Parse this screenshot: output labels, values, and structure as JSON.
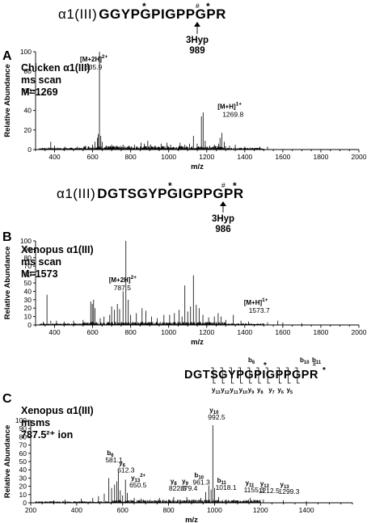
{
  "header_a": {
    "prefix": "α1(III)",
    "sequence": "GGYPGPIGPPGPR",
    "star": "*",
    "hash": "#",
    "hyp_label": "3Hyp",
    "hyp_value": "989"
  },
  "header_b": {
    "prefix": "α1(III)",
    "sequence": "DGTSGYPGIGPPGPR",
    "star": "*",
    "hash": "#",
    "hyp_label": "3Hyp",
    "hyp_value": "986"
  },
  "header_c": {
    "sequence": "DGTSGYPGPIGPPGPR",
    "star": "*",
    "hash": "#",
    "b_ions": [
      "b",
      "b",
      "b"
    ],
    "b_subs": [
      "6",
      "10",
      "11"
    ],
    "y_ions": [
      "y",
      "y",
      "y",
      "y",
      "y",
      "y",
      "y",
      "y",
      "y"
    ],
    "y_subs": [
      "13",
      "12",
      "11",
      "10",
      "9",
      "8",
      "7",
      "6",
      "5"
    ]
  },
  "chart_data": [
    {
      "type": "line",
      "panel": "A",
      "title_lines": [
        "Chicken α1(III)",
        "ms scan",
        "M=1269"
      ],
      "xlabel": "m/z",
      "ylabel": "Relative Abundance",
      "xlim": [
        300,
        2000
      ],
      "ylim": [
        0,
        100
      ],
      "xticks": [
        400,
        600,
        800,
        1000,
        1200,
        1400,
        1600,
        1800,
        2000
      ],
      "yticks": [
        0,
        20,
        40,
        60,
        80,
        100
      ],
      "peaks": [
        [
          380,
          8
        ],
        [
          400,
          4
        ],
        [
          455,
          3
        ],
        [
          520,
          3
        ],
        [
          560,
          4
        ],
        [
          600,
          5
        ],
        [
          612,
          8
        ],
        [
          625,
          12
        ],
        [
          630,
          16
        ],
        [
          635.9,
          100
        ],
        [
          643,
          14
        ],
        [
          650,
          8
        ],
        [
          672,
          4
        ],
        [
          700,
          5
        ],
        [
          728,
          4
        ],
        [
          760,
          5
        ],
        [
          790,
          4
        ],
        [
          820,
          5
        ],
        [
          855,
          7
        ],
        [
          872,
          6
        ],
        [
          890,
          9
        ],
        [
          905,
          5
        ],
        [
          930,
          4
        ],
        [
          960,
          6
        ],
        [
          990,
          7
        ],
        [
          1010,
          5
        ],
        [
          1060,
          7
        ],
        [
          1085,
          5
        ],
        [
          1110,
          6
        ],
        [
          1130,
          14
        ],
        [
          1150,
          6
        ],
        [
          1172,
          34
        ],
        [
          1181,
          38
        ],
        [
          1192,
          9
        ],
        [
          1215,
          4
        ],
        [
          1240,
          5
        ],
        [
          1262,
          6
        ],
        [
          1269.8,
          12
        ],
        [
          1280,
          17
        ],
        [
          1292,
          8
        ],
        [
          1320,
          4
        ],
        [
          1350,
          5
        ],
        [
          1400,
          3
        ],
        [
          1480,
          3
        ],
        [
          1520,
          3
        ]
      ],
      "annotations": [
        {
          "label": "[M+2H]",
          "charge": "2+",
          "value": "635.9"
        },
        {
          "label": "[M+H]",
          "charge": "1+",
          "value": "1269.8"
        }
      ]
    },
    {
      "type": "line",
      "panel": "B",
      "title_lines": [
        "Xenopus α1(III)",
        "ms scan",
        "M=1573"
      ],
      "xlabel": "m/z",
      "ylabel": "Relative Abundance",
      "xlim": [
        300,
        2000
      ],
      "ylim": [
        0,
        100
      ],
      "xticks": [
        400,
        600,
        800,
        1000,
        1200,
        1400,
        1600,
        1800,
        2000
      ],
      "yticks": [
        0,
        10,
        20,
        30,
        40,
        50,
        60,
        70,
        80,
        90,
        100
      ],
      "peaks": [
        [
          340,
          4
        ],
        [
          360,
          36
        ],
        [
          380,
          5
        ],
        [
          410,
          5
        ],
        [
          450,
          4
        ],
        [
          500,
          5
        ],
        [
          550,
          6
        ],
        [
          590,
          28
        ],
        [
          598,
          25
        ],
        [
          605,
          30
        ],
        [
          612,
          20
        ],
        [
          640,
          8
        ],
        [
          660,
          10
        ],
        [
          690,
          12
        ],
        [
          700,
          22
        ],
        [
          715,
          18
        ],
        [
          730,
          25
        ],
        [
          742,
          19
        ],
        [
          760,
          40
        ],
        [
          775,
          100
        ],
        [
          787.5,
          30
        ],
        [
          800,
          12
        ],
        [
          830,
          14
        ],
        [
          860,
          20
        ],
        [
          880,
          17
        ],
        [
          910,
          10
        ],
        [
          940,
          8
        ],
        [
          975,
          12
        ],
        [
          1005,
          12
        ],
        [
          1030,
          14
        ],
        [
          1055,
          18
        ],
        [
          1070,
          10
        ],
        [
          1085,
          47
        ],
        [
          1100,
          16
        ],
        [
          1115,
          22
        ],
        [
          1130,
          59
        ],
        [
          1145,
          24
        ],
        [
          1160,
          20
        ],
        [
          1180,
          12
        ],
        [
          1210,
          9
        ],
        [
          1240,
          10
        ],
        [
          1260,
          14
        ],
        [
          1275,
          10
        ],
        [
          1300,
          6
        ],
        [
          1340,
          12
        ],
        [
          1380,
          5
        ],
        [
          1420,
          4
        ],
        [
          1520,
          3
        ],
        [
          1573.7,
          5
        ],
        [
          1600,
          3
        ],
        [
          1700,
          2
        ]
      ],
      "annotations": [
        {
          "label": "[M+2H]",
          "charge": "2+",
          "value": "787.5"
        },
        {
          "label": "[M+H]",
          "charge": "1+",
          "value": "1573.7"
        }
      ]
    },
    {
      "type": "line",
      "panel": "C",
      "title_lines": [
        "Xenopus α1(III)",
        "msms",
        "787.5²⁺ ion"
      ],
      "xlabel": "m/z",
      "ylabel": "Relative Abundance",
      "xlim": [
        200,
        1600
      ],
      "ylim": [
        0,
        100
      ],
      "xticks": [
        200,
        400,
        600,
        800,
        1000,
        1200,
        1400
      ],
      "yticks": [
        0,
        10,
        20,
        30,
        40,
        50,
        60,
        70,
        80,
        90,
        100
      ],
      "peaks": [
        [
          300,
          3
        ],
        [
          350,
          4
        ],
        [
          420,
          5
        ],
        [
          470,
          6
        ],
        [
          495,
          8
        ],
        [
          520,
          11
        ],
        [
          540,
          30
        ],
        [
          552,
          18
        ],
        [
          565,
          22
        ],
        [
          575,
          26
        ],
        [
          581.1,
          38
        ],
        [
          590,
          15
        ],
        [
          600,
          9
        ],
        [
          612.3,
          28
        ],
        [
          620,
          12
        ],
        [
          650.5,
          6
        ],
        [
          680,
          5
        ],
        [
          720,
          4
        ],
        [
          760,
          6
        ],
        [
          800,
          4
        ],
        [
          822.3,
          7
        ],
        [
          850,
          4
        ],
        [
          879.4,
          7
        ],
        [
          910,
          4
        ],
        [
          940,
          6
        ],
        [
          961.3,
          13
        ],
        [
          975,
          21
        ],
        [
          985,
          16
        ],
        [
          992.5,
          94
        ],
        [
          1000,
          18
        ],
        [
          1018.1,
          7
        ],
        [
          1050,
          4
        ],
        [
          1100,
          3
        ],
        [
          1155.3,
          6
        ],
        [
          1212.5,
          4
        ],
        [
          1299.3,
          3
        ],
        [
          1400,
          2
        ]
      ],
      "annotations": [
        {
          "ion": "b",
          "sub": "6",
          "value": "581.1"
        },
        {
          "ion": "y",
          "sub": "6",
          "value": "612.3"
        },
        {
          "ion": "y",
          "sub": "13",
          "charge": "2+",
          "value": "650.5"
        },
        {
          "ion": "y",
          "sub": "8",
          "value": "822.3"
        },
        {
          "ion": "y",
          "sub": "9",
          "value": "879.4"
        },
        {
          "ion": "b",
          "sub": "10",
          "value": "961.3"
        },
        {
          "ion": "y",
          "sub": "10",
          "value": "992.5"
        },
        {
          "ion": "b",
          "sub": "11",
          "value": "1018.1"
        },
        {
          "ion": "y",
          "sub": "11",
          "value": "1155.3"
        },
        {
          "ion": "y",
          "sub": "12",
          "value": "1212.5"
        },
        {
          "ion": "y",
          "sub": "13",
          "value": "1299.3"
        }
      ]
    }
  ],
  "panel_letters": [
    "A",
    "B",
    "C"
  ]
}
